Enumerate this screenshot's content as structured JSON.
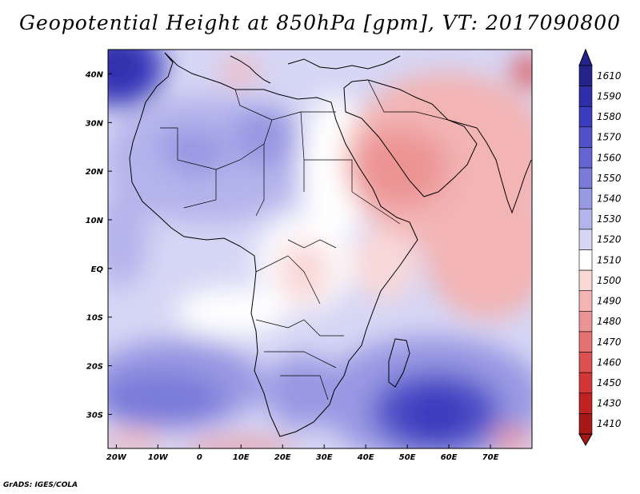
{
  "title": "Geopotential Height at 850hPa [gpm], VT: 2017090800",
  "footer": "GrADS: IGES/COLA",
  "map": {
    "lon_range": [
      -22,
      80
    ],
    "lat_range": [
      -37,
      45
    ],
    "lon_ticks": [
      {
        "value": -20,
        "label": "20W"
      },
      {
        "value": -10,
        "label": "10W"
      },
      {
        "value": 0,
        "label": "0"
      },
      {
        "value": 10,
        "label": "10E"
      },
      {
        "value": 20,
        "label": "20E"
      },
      {
        "value": 30,
        "label": "30E"
      },
      {
        "value": 40,
        "label": "40E"
      },
      {
        "value": 50,
        "label": "50E"
      },
      {
        "value": 60,
        "label": "60E"
      },
      {
        "value": 70,
        "label": "70E"
      }
    ],
    "lat_ticks": [
      {
        "value": 40,
        "label": "40N"
      },
      {
        "value": 30,
        "label": "30N"
      },
      {
        "value": 20,
        "label": "20N"
      },
      {
        "value": 10,
        "label": "10N"
      },
      {
        "value": 0,
        "label": "EQ"
      },
      {
        "value": -10,
        "label": "10S"
      },
      {
        "value": -20,
        "label": "20S"
      },
      {
        "value": -30,
        "label": "30S"
      }
    ]
  },
  "colorbar": {
    "labels": [
      "1610",
      "1590",
      "1580",
      "1570",
      "1560",
      "1550",
      "1540",
      "1530",
      "1520",
      "1510",
      "1500",
      "1490",
      "1480",
      "1470",
      "1460",
      "1450",
      "1430",
      "1410"
    ],
    "colors": [
      "#23238a",
      "#2e2ea8",
      "#3b3bbd",
      "#5050c8",
      "#6565d2",
      "#7a7ad9",
      "#9898e3",
      "#b4b4ec",
      "#d6d6f5",
      "#ffffff",
      "#f9d8d8",
      "#f3b4b4",
      "#ec9494",
      "#e57272",
      "#dc5050",
      "#d23636",
      "#c02222",
      "#a61818"
    ]
  },
  "colors": {
    "frame": "#000000"
  }
}
